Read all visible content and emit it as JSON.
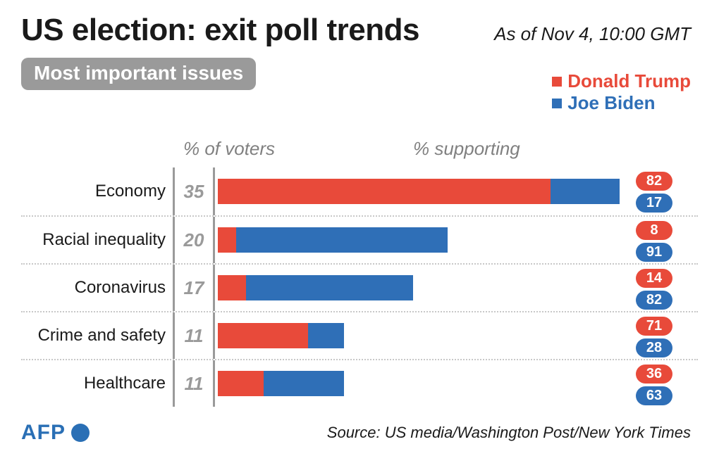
{
  "title": "US election: exit poll trends",
  "as_of": "As of Nov 4, 10:00 GMT",
  "subtitle": "Most important issues",
  "columns": {
    "voters": "% of voters",
    "supporting": "% supporting"
  },
  "legend": [
    {
      "label": "Donald Trump",
      "color": "#e84a3a"
    },
    {
      "label": "Joe Biden",
      "color": "#2f6fb7"
    }
  ],
  "chart": {
    "type": "stacked-bar-horizontal",
    "max_total": 35,
    "label_fontsize": 24,
    "value_fontsize": 26,
    "divider_color": "#9a9a9a",
    "dotted_color": "#c8c8c8",
    "pill_trump_color": "#e84a3a",
    "pill_biden_color": "#2f6fb7",
    "background_color": "#ffffff",
    "rows": [
      {
        "category": "Economy",
        "voters_pct": 35,
        "trump": 82,
        "biden": 17
      },
      {
        "category": "Racial inequality",
        "voters_pct": 20,
        "trump": 8,
        "biden": 91
      },
      {
        "category": "Coronavirus",
        "voters_pct": 17,
        "trump": 14,
        "biden": 82
      },
      {
        "category": "Crime and safety",
        "voters_pct": 11,
        "trump": 71,
        "biden": 28
      },
      {
        "category": "Healthcare",
        "voters_pct": 11,
        "trump": 36,
        "biden": 63
      }
    ]
  },
  "source": "Source: US media/Washington Post/New York Times",
  "logo": {
    "text": "AFP",
    "color": "#2a6fb5"
  }
}
